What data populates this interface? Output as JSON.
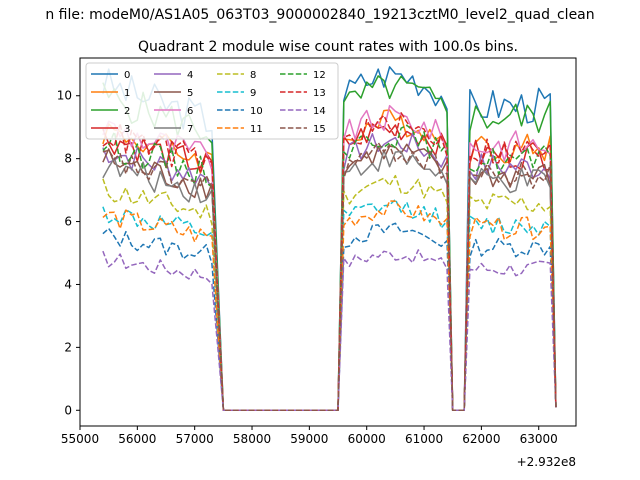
{
  "chart_data": {
    "type": "line",
    "suptitle": "n file: modeM0/AS1A05_063T03_9000002840_19213cztM0_level2_quad_clean",
    "title": "Quadrant 2 module wise count rates with 100.0s bins.",
    "xlabel": "",
    "ylabel": "",
    "x_offset_label": "+2.932e8",
    "xlim": [
      55000,
      63650
    ],
    "ylim": [
      -0.5,
      11.2
    ],
    "xticks": [
      55000,
      56000,
      57000,
      58000,
      59000,
      60000,
      61000,
      62000,
      63000
    ],
    "yticks": [
      0,
      2,
      4,
      6,
      8,
      10
    ],
    "grid": false,
    "legend_position": "upper-left",
    "legend_columns": 4,
    "segments": [
      [
        55400,
        57300
      ],
      [
        57500,
        59450
      ],
      [
        59500,
        61400
      ],
      [
        61500,
        61650
      ],
      [
        61700,
        63300
      ]
    ],
    "series": [
      {
        "name": "0",
        "color": "#1f77b4",
        "dash": "solid",
        "level": 9.9
      },
      {
        "name": "1",
        "color": "#ff7f0e",
        "dash": "solid",
        "level": 8.5
      },
      {
        "name": "2",
        "color": "#2ca02c",
        "dash": "solid",
        "level": 9.5
      },
      {
        "name": "3",
        "color": "#d62728",
        "dash": "solid",
        "level": 8.3
      },
      {
        "name": "4",
        "color": "#9467bd",
        "dash": "solid",
        "level": 7.9
      },
      {
        "name": "5",
        "color": "#8c564b",
        "dash": "solid",
        "level": 7.6
      },
      {
        "name": "6",
        "color": "#e377c2",
        "dash": "solid",
        "level": 8.6
      },
      {
        "name": "7",
        "color": "#7f7f7f",
        "dash": "solid",
        "level": 7.4
      },
      {
        "name": "8",
        "color": "#bcbd22",
        "dash": "dashed",
        "level": 6.7
      },
      {
        "name": "9",
        "color": "#17becf",
        "dash": "dashed",
        "level": 6.0
      },
      {
        "name": "10",
        "color": "#1f77b4",
        "dash": "dashed",
        "level": 5.3
      },
      {
        "name": "11",
        "color": "#ff7f0e",
        "dash": "dashed",
        "level": 5.9
      },
      {
        "name": "12",
        "color": "#2ca02c",
        "dash": "dashed",
        "level": 8.1
      },
      {
        "name": "13",
        "color": "#d62728",
        "dash": "dashed",
        "level": 8.4
      },
      {
        "name": "14",
        "color": "#9467bd",
        "dash": "dashed",
        "level": 4.6
      },
      {
        "name": "15",
        "color": "#8c564b",
        "dash": "dashed",
        "level": 7.6
      }
    ]
  }
}
